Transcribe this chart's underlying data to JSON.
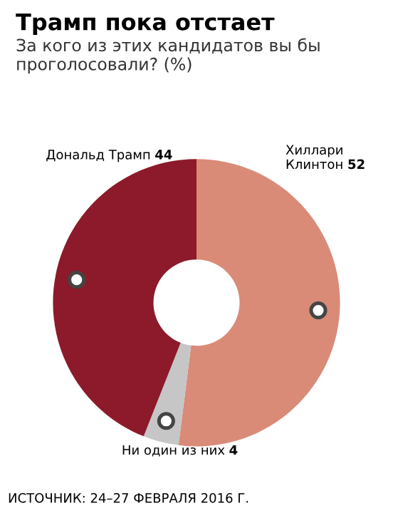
{
  "chart_data": {
    "type": "donut",
    "title": "Трамп пока отстает",
    "subtitle": "За кого из этих кандидатов вы бы проголосовали? (%)",
    "categories": [
      "Хиллари Клинтон",
      "Ни один из них",
      "Дональд Трамп"
    ],
    "values": [
      52,
      4,
      44
    ],
    "colors": [
      "#d98b77",
      "#c6c6c6",
      "#8c1a2a"
    ],
    "data_labels": true,
    "annotations": [
      "ИСТОЧНИК: 24–27 ФЕВРАЛЯ 2016 Г."
    ]
  }
}
